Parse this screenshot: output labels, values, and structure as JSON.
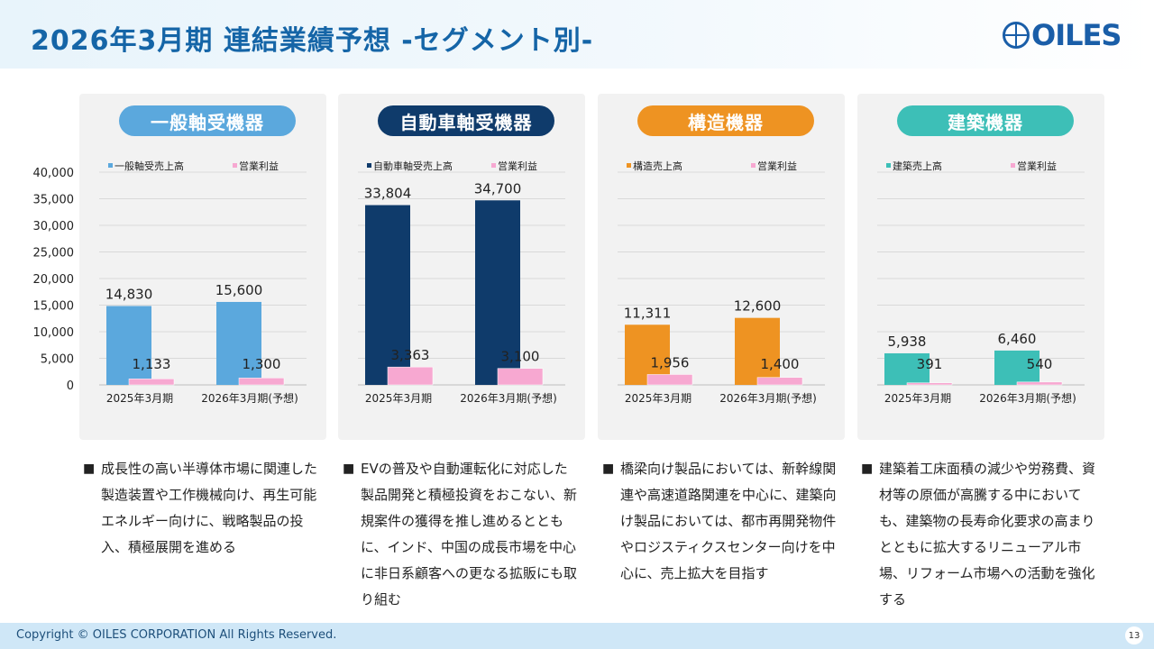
{
  "header": {
    "title": "2026年3月期 連結業績予想 -セグメント別-",
    "logo_text": "OILES"
  },
  "colors": {
    "general": "#5ba8dd",
    "auto": "#0f3b6b",
    "structural": "#ee9322",
    "construction": "#3dbfb7",
    "profit": "#f7a8d1"
  },
  "chart_data": [
    {
      "type": "bar",
      "title": "一般軸受機器",
      "categories": [
        "2025年3月期",
        "2026年3月期(予想)"
      ],
      "series": [
        {
          "name": "一般軸受売上高",
          "values": [
            14830,
            15600
          ]
        },
        {
          "name": "営業利益",
          "values": [
            1133,
            1300
          ]
        }
      ],
      "data_labels": [
        [
          "14,830",
          "15,600"
        ],
        [
          "1,133",
          "1,300"
        ]
      ],
      "ylim": [
        0,
        40000
      ],
      "yticks": [
        "40,000",
        "35,000",
        "30,000",
        "25,000",
        "20,000",
        "15,000",
        "10,000",
        "5,000",
        "0"
      ],
      "grid": true,
      "legend": "top"
    },
    {
      "type": "bar",
      "title": "自動車軸受機器",
      "categories": [
        "2025年3月期",
        "2026年3月期(予想)"
      ],
      "series": [
        {
          "name": "自動車軸受売上高",
          "values": [
            33804,
            34700
          ]
        },
        {
          "name": "営業利益",
          "values": [
            3363,
            3100
          ]
        }
      ],
      "data_labels": [
        [
          "33,804",
          "34,700"
        ],
        [
          "3,363",
          "3,100"
        ]
      ],
      "ylim": [
        0,
        40000
      ],
      "grid": true,
      "legend": "top"
    },
    {
      "type": "bar",
      "title": "構造機器",
      "categories": [
        "2025年3月期",
        "2026年3月期(予想)"
      ],
      "series": [
        {
          "name": "構造売上高",
          "values": [
            11311,
            12600
          ]
        },
        {
          "name": "営業利益",
          "values": [
            1956,
            1400
          ]
        }
      ],
      "data_labels": [
        [
          "11,311",
          "12,600"
        ],
        [
          "1,956",
          "1,400"
        ]
      ],
      "ylim": [
        0,
        40000
      ],
      "grid": true,
      "legend": "top"
    },
    {
      "type": "bar",
      "title": "建築機器",
      "categories": [
        "2025年3月期",
        "2026年3月期(予想)"
      ],
      "series": [
        {
          "name": "建築売上高",
          "values": [
            5938,
            6460
          ]
        },
        {
          "name": "営業利益",
          "values": [
            391,
            540
          ]
        }
      ],
      "data_labels": [
        [
          "5,938",
          "6,460"
        ],
        [
          "391",
          "540"
        ]
      ],
      "ylim": [
        0,
        40000
      ],
      "grid": true,
      "legend": "top"
    }
  ],
  "descriptions": [
    {
      "bullet": "■",
      "text": "成長性の高い半導体市場に関連した製造装置や工作機械向け、再生可能エネルギー向けに、戦略製品の投入、積極展開を進める"
    },
    {
      "bullet": "■",
      "text": "EVの普及や自動運転化に対応した製品開発と積極投資をおこない、新規案件の獲得を推し進めるとともに、インド、中国の成長市場を中心に非日系顧客への更なる拡販にも取り組む"
    },
    {
      "bullet": "■",
      "text": "橋梁向け製品においては、新幹線関連や高速道路関連を中心に、建築向け製品においては、都市再開発物件やロジスティクスセンター向けを中心に、売上拡大を目指す"
    },
    {
      "bullet": "■",
      "text": "建築着工床面積の減少や労務費、資材等の原価が高騰する中においても、建築物の長寿命化要求の高まりとともに拡大するリニューアル市場、リフォーム市場への活動を強化する"
    }
  ],
  "footer": {
    "copyright": "Copyright © OILES CORPORATION All Rights Reserved.",
    "page": "13"
  }
}
